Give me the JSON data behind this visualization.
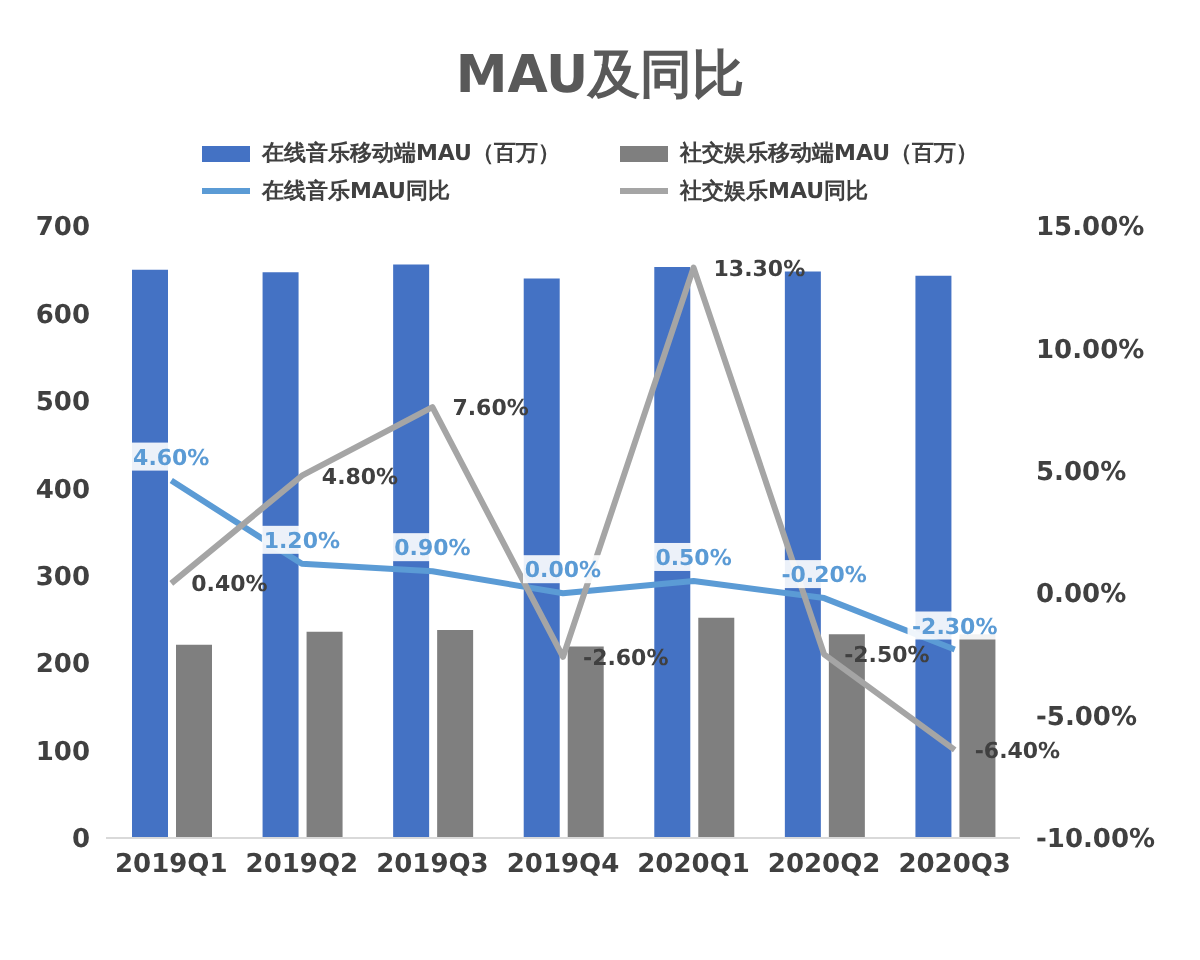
{
  "chart_data": {
    "type": "bar",
    "title": "MAU及同比",
    "categories": [
      "2019Q1",
      "2019Q2",
      "2019Q3",
      "2019Q4",
      "2020Q1",
      "2020Q2",
      "2020Q3"
    ],
    "series": [
      {
        "name": "在线音乐移动端MAU（百万）",
        "color": "#4472c4",
        "values": [
          650,
          647,
          656,
          640,
          653,
          648,
          643
        ]
      },
      {
        "name": "社交娱乐移动端MAU（百万）",
        "color": "#7f7f7f",
        "values": [
          221,
          236,
          238,
          219,
          252,
          233,
          233
        ]
      },
      {
        "name": "在线音乐MAU同比",
        "type": "line",
        "axis": "y2",
        "color": "#5b9bd5",
        "values": [
          4.6,
          1.2,
          0.9,
          0.0,
          0.5,
          -0.2,
          -2.3
        ],
        "value_labels": [
          "4.60%",
          "1.20%",
          "0.90%",
          "0.00%",
          "0.50%",
          "-0.20%",
          "-2.30%"
        ]
      },
      {
        "name": "社交娱乐MAU同比",
        "type": "line",
        "axis": "y2",
        "color": "#a5a5a5",
        "values": [
          0.4,
          4.8,
          7.6,
          -2.6,
          13.3,
          -2.5,
          -6.4
        ],
        "value_labels": [
          "0.40%",
          "4.80%",
          "7.60%",
          "-2.60%",
          "13.30%",
          "-2.50%",
          "-6.40%"
        ]
      }
    ],
    "ylim": [
      0,
      700
    ],
    "yticks": [
      0,
      100,
      200,
      300,
      400,
      500,
      600,
      700
    ],
    "y2lim": [
      -10,
      15
    ],
    "y2ticks": [
      {
        "value": -10,
        "label": "-10.00%"
      },
      {
        "value": -5,
        "label": "-5.00%"
      },
      {
        "value": 0,
        "label": "0.00%"
      },
      {
        "value": 5,
        "label": "5.00%"
      },
      {
        "value": 10,
        "label": "10.00%"
      },
      {
        "value": 15,
        "label": "15.00%"
      }
    ],
    "grid": false,
    "legend": "top",
    "marker": "none"
  }
}
